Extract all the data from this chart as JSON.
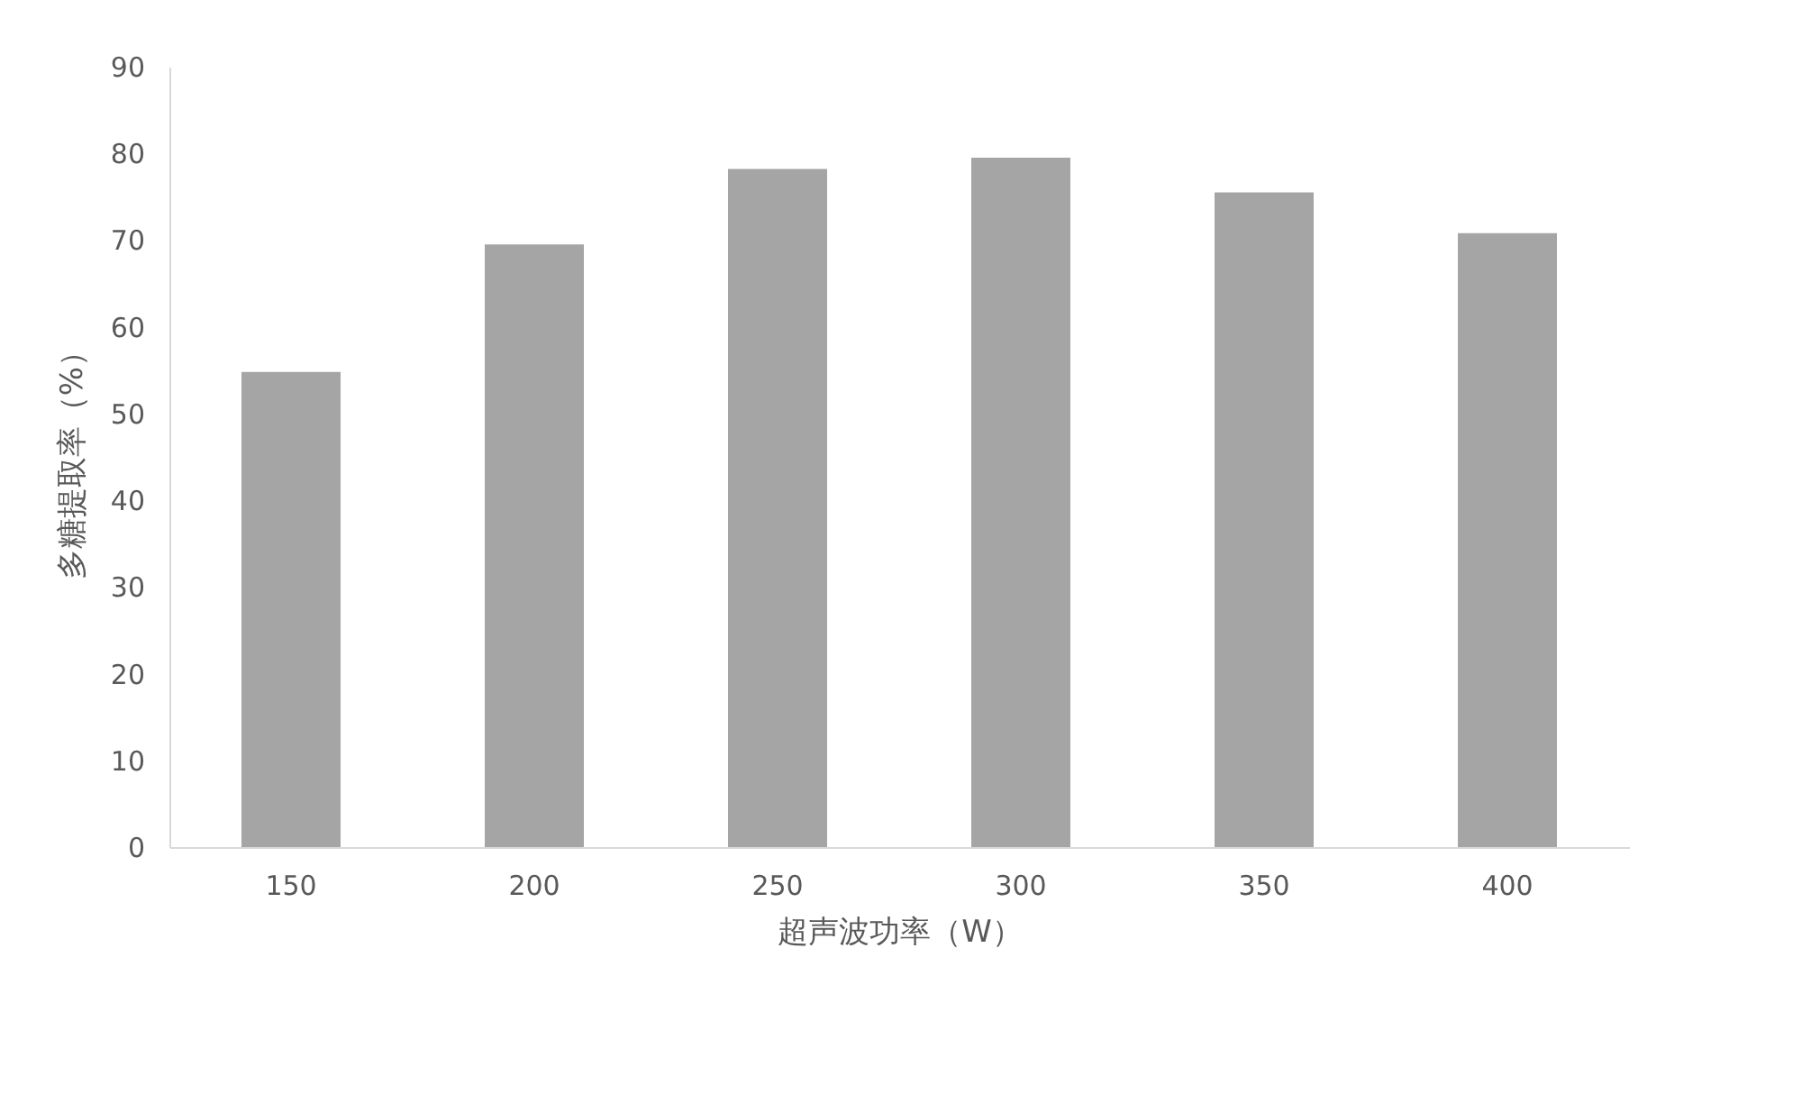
{
  "chart_data": {
    "type": "bar",
    "xlabel": "超声波功率（W）",
    "ylabel": "多糖提取率（%）",
    "categories": [
      "150",
      "200",
      "250",
      "300",
      "350",
      "400"
    ],
    "values": [
      54.8,
      69.5,
      78.2,
      79.5,
      75.5,
      70.8
    ],
    "color": "#a5a5a5",
    "ylim": [
      0,
      90
    ],
    "yticks": [
      0,
      10,
      20,
      30,
      40,
      50,
      60,
      70,
      80,
      90
    ],
    "grid": false
  }
}
